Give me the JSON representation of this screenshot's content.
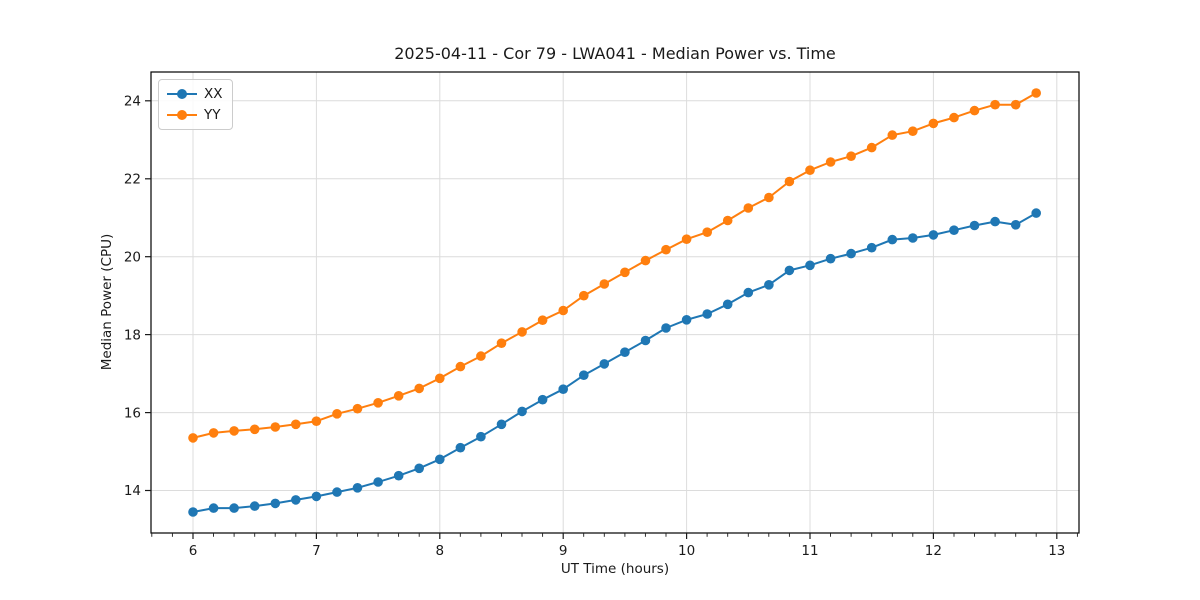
{
  "figure": {
    "title": "2025-04-11 - Cor 79 - LWA041 - Median Power vs. Time"
  },
  "chart_data": {
    "type": "line",
    "title": "2025-04-11 - Cor 79 - LWA041 - Median Power vs. Time",
    "xlabel": "UT Time (hours)",
    "ylabel": "Median Power (CPU)",
    "xlim": [
      5.66,
      13.18
    ],
    "ylim": [
      12.91,
      24.74
    ],
    "xticks": [
      6,
      7,
      8,
      9,
      10,
      11,
      12,
      13
    ],
    "yticks": [
      14,
      16,
      18,
      20,
      22,
      24
    ],
    "x_minor_step": 0.166667,
    "grid": true,
    "legend_position": "upper-left",
    "marker": "circle",
    "x": [
      6.0,
      6.167,
      6.333,
      6.5,
      6.667,
      6.833,
      7.0,
      7.167,
      7.333,
      7.5,
      7.667,
      7.833,
      8.0,
      8.167,
      8.333,
      8.5,
      8.667,
      8.833,
      9.0,
      9.167,
      9.333,
      9.5,
      9.667,
      9.833,
      10.0,
      10.167,
      10.333,
      10.5,
      10.667,
      10.833,
      11.0,
      11.167,
      11.333,
      11.5,
      11.667,
      11.833,
      12.0,
      12.167,
      12.333,
      12.5,
      12.667,
      12.833
    ],
    "series": [
      {
        "name": "XX",
        "color": "#1f77b4",
        "values": [
          13.45,
          13.55,
          13.55,
          13.6,
          13.67,
          13.76,
          13.85,
          13.96,
          14.07,
          14.22,
          14.38,
          14.57,
          14.8,
          15.1,
          15.38,
          15.7,
          16.03,
          16.33,
          16.6,
          16.96,
          17.25,
          17.55,
          17.85,
          18.17,
          18.38,
          18.53,
          18.78,
          19.08,
          19.28,
          19.65,
          19.78,
          19.95,
          20.08,
          20.23,
          20.44,
          20.48,
          20.56,
          20.68,
          20.8,
          20.9,
          20.82,
          21.12
        ]
      },
      {
        "name": "YY",
        "color": "#ff7f0e",
        "values": [
          15.35,
          15.48,
          15.53,
          15.57,
          15.63,
          15.7,
          15.78,
          15.97,
          16.1,
          16.25,
          16.43,
          16.62,
          16.88,
          17.18,
          17.45,
          17.78,
          18.07,
          18.37,
          18.62,
          19.0,
          19.3,
          19.6,
          19.9,
          20.18,
          20.45,
          20.63,
          20.93,
          21.25,
          21.52,
          21.93,
          22.22,
          22.43,
          22.58,
          22.8,
          23.12,
          23.22,
          23.42,
          23.57,
          23.75,
          23.9,
          23.9,
          24.2
        ]
      }
    ]
  }
}
